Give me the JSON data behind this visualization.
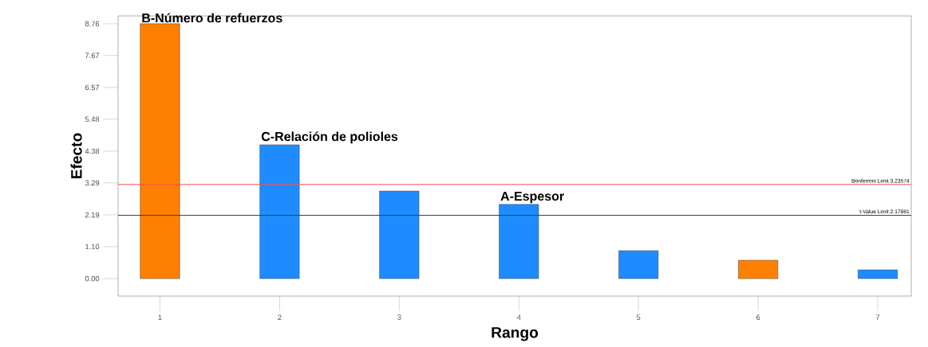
{
  "chart_data": {
    "type": "bar",
    "xlabel": "Rango",
    "ylabel": "Efecto",
    "categories": [
      "1",
      "2",
      "3",
      "4",
      "5",
      "6",
      "7"
    ],
    "values": [
      8.76,
      4.6,
      3.01,
      2.55,
      0.96,
      0.63,
      0.3
    ],
    "colors": [
      "#ff8000",
      "#1e8cff",
      "#1e8cff",
      "#1e8cff",
      "#1e8cff",
      "#ff8000",
      "#1e8cff"
    ],
    "ylim": [
      -0.6,
      9.03
    ],
    "yticks": [
      {
        "value": 0,
        "label": "0.00"
      },
      {
        "value": 1.1,
        "label": "1.10"
      },
      2.19,
      3.29,
      4.38,
      5.48,
      6.57,
      7.67,
      8.76
    ],
    "grid": false,
    "ref_lines": [
      {
        "axis": "y",
        "value": 3.23574,
        "label": "Bonferroni Limit 3.23574",
        "color": "#ff5050"
      },
      {
        "axis": "y",
        "value": 2.17881,
        "label": "t-Value Limit 2.17881",
        "color": "#404040"
      }
    ],
    "annotations": [
      {
        "text": "B-Número de refuerzos",
        "x": "1",
        "y": 8.76
      },
      {
        "text": "C-Relación de polioles",
        "x": "2",
        "y": 4.6
      },
      {
        "text": "A-Espesor",
        "x": "4",
        "y": 2.55
      }
    ]
  }
}
